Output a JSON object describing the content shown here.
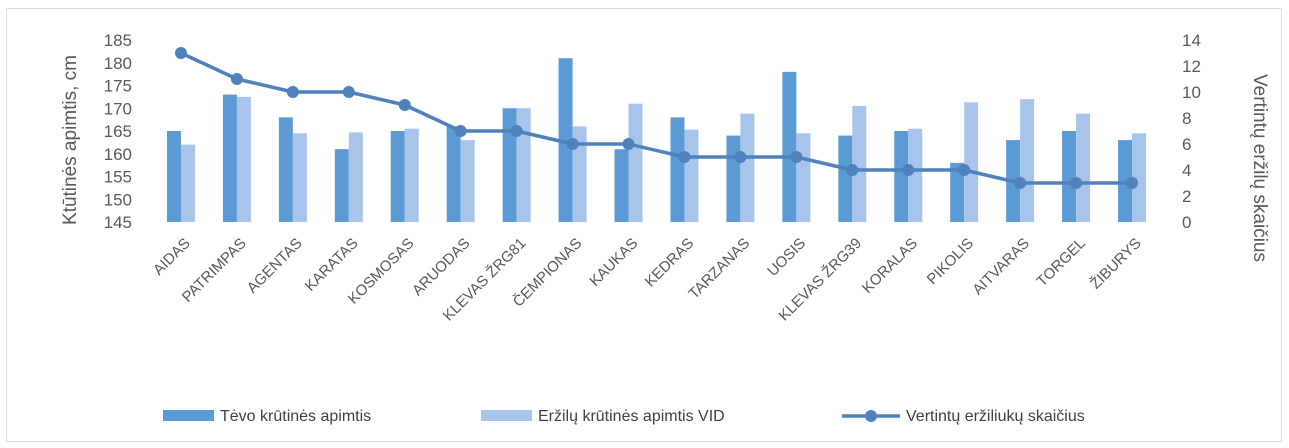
{
  "chart_data": {
    "type": "bar",
    "categories": [
      "AIDAS",
      "PATRIMPAS",
      "AGENTAS",
      "KARATAS",
      "KOSMOSAS",
      "ARUODAS",
      "KLEVAS ŽRG81",
      "ČEMPIONAS",
      "KAUKAS",
      "KEDRAS",
      "TARZANAS",
      "UOSIS",
      "KLEVAS ŽRG39",
      "KORALAS",
      "PIKOLIS",
      "AITVARAS",
      "TORGEL",
      "ŽIBURYS"
    ],
    "series": [
      {
        "name": "Tėvo krūtinės apimtis",
        "type": "bar",
        "axis": "left",
        "color": "#5b9bd5",
        "values": [
          165,
          173,
          168,
          161,
          165,
          166,
          170,
          181,
          161,
          168,
          164,
          178,
          164,
          165,
          158,
          163,
          165,
          163
        ]
      },
      {
        "name": "Eržilų krūtinės apimtis VID",
        "type": "bar",
        "axis": "left",
        "color": "#a9c4eb",
        "values": [
          162,
          172.5,
          164.5,
          164.7,
          165.5,
          163,
          170,
          166,
          171,
          165.3,
          168.8,
          164.5,
          170.5,
          165.5,
          171.3,
          172,
          168.8,
          164.5
        ]
      },
      {
        "name": "Vertintų eržiliukų skaičius",
        "type": "line",
        "axis": "right",
        "color": "#4f81bd",
        "values": [
          13,
          11,
          10,
          10,
          9,
          7,
          7,
          6,
          6,
          5,
          5,
          5,
          4,
          4,
          4,
          3,
          3,
          3
        ]
      }
    ],
    "ylabel": "Ktūtinės apimtis, cm",
    "y2label": "Vertintų eržilų skaičius",
    "ylim": [
      145,
      185
    ],
    "yticks": [
      145,
      150,
      155,
      160,
      165,
      170,
      175,
      180,
      185
    ],
    "y2lim": [
      0,
      14
    ],
    "y2ticks": [
      0,
      2,
      4,
      6,
      8,
      10,
      12,
      14
    ],
    "grid": false,
    "legend": "bottom"
  }
}
